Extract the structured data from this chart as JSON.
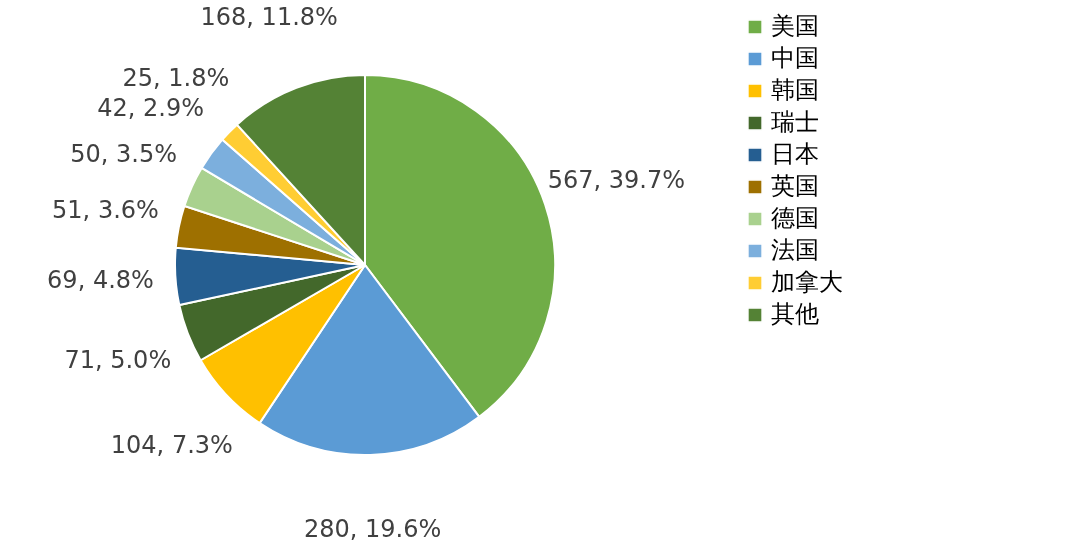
{
  "chart_data": {
    "type": "pie",
    "categories": [
      "美国",
      "中国",
      "韩国",
      "瑞士",
      "日本",
      "英国",
      "德国",
      "法国",
      "加拿大",
      "其他"
    ],
    "values": [
      567,
      280,
      104,
      71,
      69,
      51,
      50,
      42,
      25,
      168
    ],
    "value_labels": [
      "567, 39.7%",
      "280, 19.6%",
      "104, 7.3%",
      "71, 5.0%",
      "69, 4.8%",
      "51, 3.6%",
      "50, 3.5%",
      "42, 2.9%",
      "25, 1.8%",
      "168, 11.8%"
    ],
    "colors": [
      "#70ad47",
      "#5b9bd5",
      "#ffc000",
      "#43682b",
      "#255e91",
      "#9e7000",
      "#a9d18e",
      "#7cafdd",
      "#ffcd33",
      "#548235"
    ],
    "legend": "right"
  }
}
